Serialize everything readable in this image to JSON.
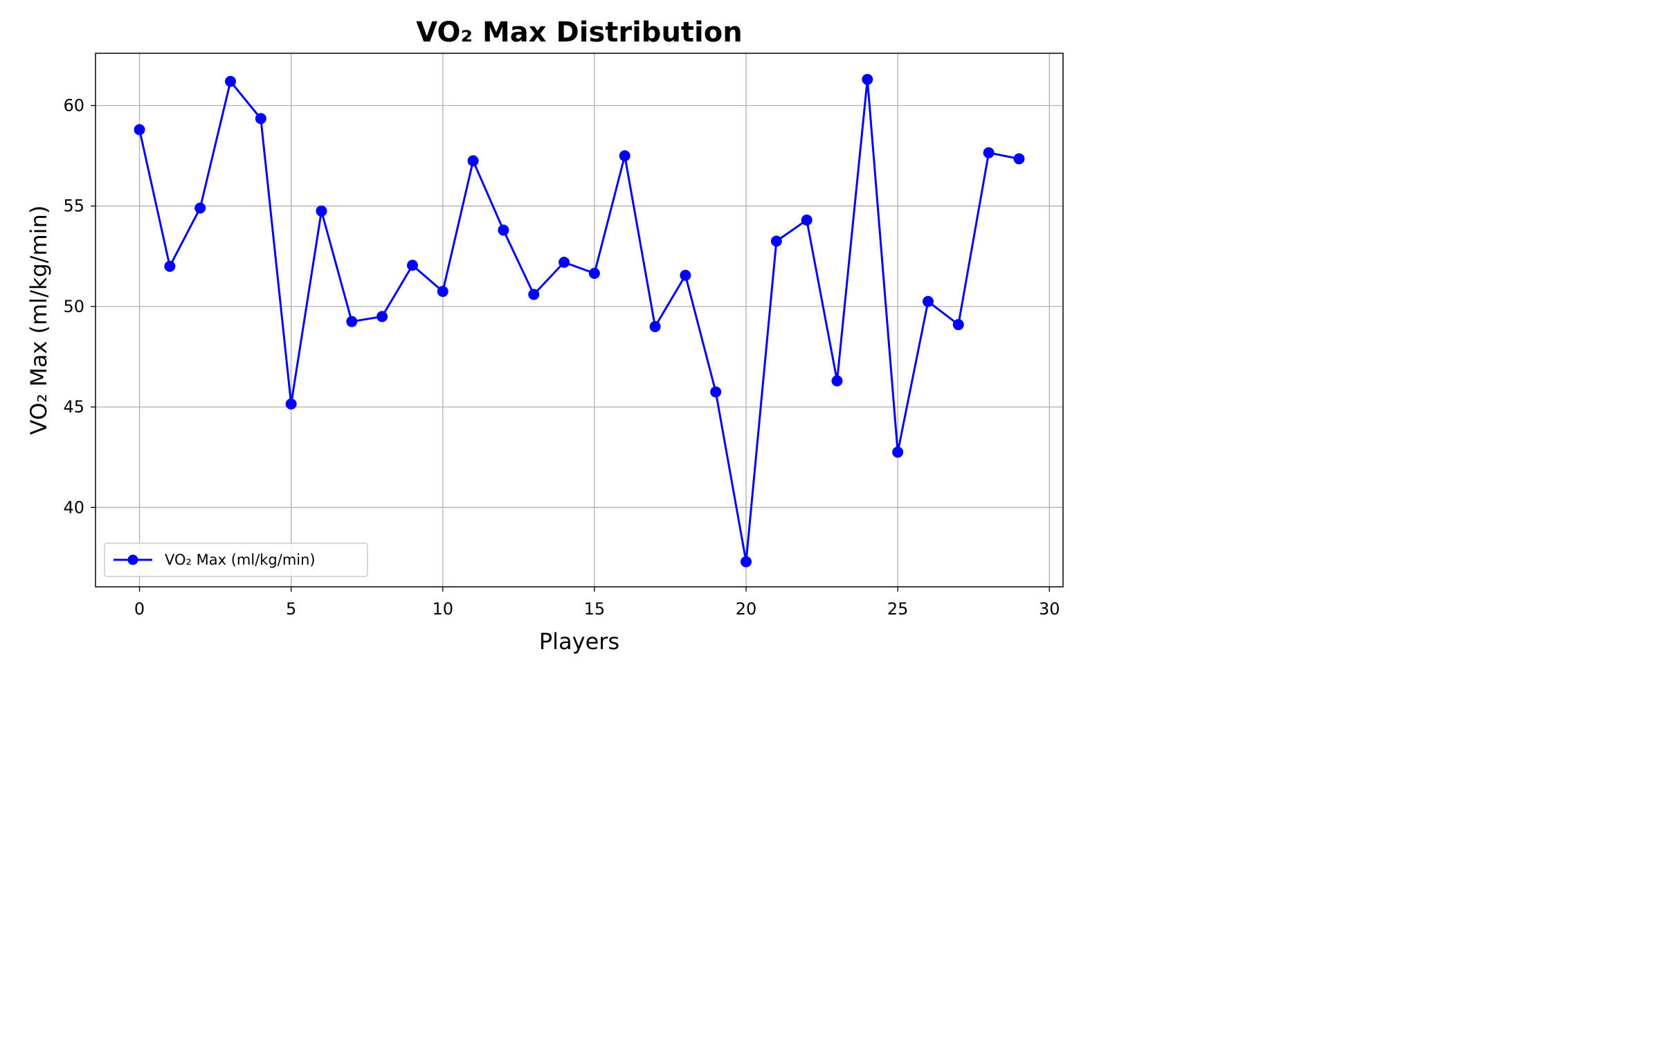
{
  "chart_data": {
    "type": "line",
    "title": "VO₂ Max Distribution",
    "xlabel": "Players",
    "ylabel": "VO₂ Max (ml/kg/min)",
    "x_ticks": [
      0,
      5,
      10,
      15,
      20,
      25,
      30
    ],
    "y_ticks": [
      40,
      45,
      50,
      55,
      60
    ],
    "xlim": [
      -1.45,
      30.45
    ],
    "ylim": [
      36.05,
      62.6
    ],
    "grid": true,
    "legend_position": "lower-left",
    "series": [
      {
        "name": "VO₂ Max (ml/kg/min)",
        "color": "#0000ff",
        "marker": "circle",
        "x": [
          0,
          1,
          2,
          3,
          4,
          5,
          6,
          7,
          8,
          9,
          10,
          11,
          12,
          13,
          14,
          15,
          16,
          17,
          18,
          19,
          20,
          21,
          22,
          23,
          24,
          25,
          26,
          27,
          28,
          29
        ],
        "values": [
          58.8,
          52.0,
          54.9,
          61.2,
          59.35,
          45.15,
          54.75,
          49.25,
          49.5,
          52.05,
          50.75,
          57.25,
          53.8,
          50.6,
          52.2,
          51.65,
          57.5,
          49.0,
          51.55,
          45.75,
          37.3,
          53.25,
          54.3,
          46.3,
          61.3,
          42.75,
          50.25,
          49.1,
          57.65,
          57.35
        ]
      }
    ]
  }
}
